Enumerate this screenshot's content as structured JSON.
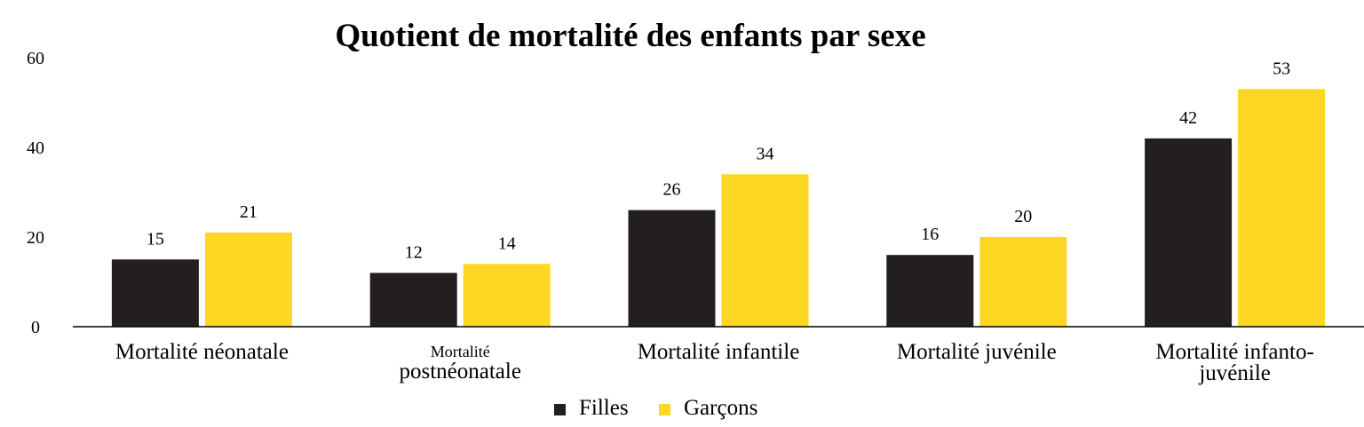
{
  "chart_data": {
    "type": "bar",
    "title": "Quotient de mortalité des enfants par sexe",
    "xlabel": "",
    "ylabel": "",
    "ylim": [
      0,
      60
    ],
    "yticks": [
      0,
      20,
      40,
      60
    ],
    "grid": false,
    "legend_position": "bottom",
    "categories": [
      [
        "Mortalité néonatale"
      ],
      [
        "Mortalité",
        "postnéonatale"
      ],
      [
        "Mortalité infantile"
      ],
      [
        "Mortalité juvénile"
      ],
      [
        "Mortalité infanto-",
        "juvénile"
      ]
    ],
    "series": [
      {
        "name": "Filles",
        "color": "#231f20",
        "values": [
          15,
          12,
          26,
          16,
          42
        ]
      },
      {
        "name": "Garçons",
        "color": "#fdd723",
        "values": [
          21,
          14,
          34,
          20,
          53
        ]
      }
    ]
  }
}
